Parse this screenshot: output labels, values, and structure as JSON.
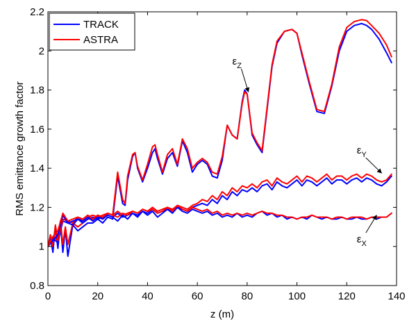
{
  "chart_data": {
    "type": "line",
    "title": "",
    "xlabel": "z (m)",
    "ylabel": "RMS emittance growth factor",
    "xlim": [
      0,
      140
    ],
    "ylim": [
      0.8,
      2.2
    ],
    "xticks": [
      0,
      20,
      40,
      60,
      80,
      100,
      120,
      140
    ],
    "yticks": [
      0.8,
      1,
      1.2,
      1.4,
      1.6,
      1.8,
      2,
      2.2
    ],
    "xtick_labels": [
      "0",
      "20",
      "40",
      "60",
      "80",
      "100",
      "120",
      "140"
    ],
    "ytick_labels": [
      "0.8",
      "1",
      "1.2",
      "1.4",
      "1.6",
      "1.8",
      "2",
      "2.2"
    ],
    "grid": false,
    "legend": {
      "position": "top-left",
      "entries": [
        {
          "label": "TRACK",
          "color": "#0000ff"
        },
        {
          "label": "ASTRA",
          "color": "#ff0000"
        }
      ]
    },
    "series": [
      {
        "name": "TRACK",
        "component": "z",
        "color": "#0000ff",
        "x": [
          0,
          1,
          2,
          3,
          4,
          5,
          6,
          7,
          8,
          10,
          12,
          14,
          16,
          18,
          20,
          22,
          24,
          26,
          28,
          30,
          31,
          32,
          34,
          35,
          36,
          38,
          40,
          42,
          43,
          44,
          46,
          48,
          50,
          52,
          54,
          56,
          58,
          60,
          62,
          64,
          66,
          68,
          70,
          72,
          74,
          76,
          78,
          79,
          80,
          82,
          84,
          86,
          88,
          90,
          92,
          95,
          98,
          100,
          102,
          105,
          108,
          111,
          114,
          117,
          120,
          123,
          126,
          128,
          130,
          133,
          136,
          138
        ],
        "y": [
          1.0,
          1.05,
          0.97,
          1.1,
          0.99,
          1.12,
          0.97,
          1.09,
          0.95,
          1.11,
          1.08,
          1.1,
          1.12,
          1.12,
          1.14,
          1.12,
          1.15,
          1.14,
          1.36,
          1.22,
          1.21,
          1.34,
          1.46,
          1.48,
          1.4,
          1.33,
          1.4,
          1.48,
          1.5,
          1.45,
          1.37,
          1.45,
          1.48,
          1.41,
          1.54,
          1.48,
          1.38,
          1.42,
          1.44,
          1.42,
          1.36,
          1.35,
          1.44,
          1.62,
          1.57,
          1.55,
          1.74,
          1.8,
          1.78,
          1.57,
          1.52,
          1.48,
          1.7,
          1.92,
          2.04,
          2.1,
          2.11,
          2.09,
          1.98,
          1.83,
          1.69,
          1.68,
          1.82,
          2.0,
          2.1,
          2.13,
          2.14,
          2.13,
          2.11,
          2.06,
          1.99,
          1.94
        ]
      },
      {
        "name": "ASTRA",
        "component": "z",
        "color": "#ff0000",
        "x": [
          0,
          1,
          2,
          3,
          4,
          5,
          6,
          7,
          8,
          10,
          12,
          14,
          16,
          18,
          20,
          22,
          24,
          26,
          28,
          30,
          31,
          32,
          34,
          35,
          36,
          38,
          40,
          42,
          43,
          44,
          46,
          48,
          50,
          52,
          54,
          56,
          58,
          60,
          62,
          64,
          66,
          68,
          70,
          72,
          74,
          76,
          78,
          79,
          80,
          82,
          84,
          86,
          88,
          90,
          92,
          95,
          98,
          100,
          102,
          105,
          108,
          111,
          114,
          117,
          120,
          123,
          126,
          128,
          130,
          133,
          136,
          138
        ],
        "y": [
          1.0,
          1.06,
          1.0,
          1.11,
          1.03,
          1.13,
          1.01,
          1.1,
          1.01,
          1.12,
          1.1,
          1.12,
          1.14,
          1.14,
          1.16,
          1.14,
          1.17,
          1.16,
          1.38,
          1.24,
          1.22,
          1.36,
          1.47,
          1.48,
          1.41,
          1.34,
          1.42,
          1.51,
          1.52,
          1.47,
          1.38,
          1.47,
          1.5,
          1.42,
          1.55,
          1.5,
          1.4,
          1.43,
          1.45,
          1.43,
          1.38,
          1.37,
          1.46,
          1.62,
          1.57,
          1.55,
          1.73,
          1.79,
          1.78,
          1.58,
          1.53,
          1.49,
          1.71,
          1.93,
          2.05,
          2.1,
          2.11,
          2.09,
          1.99,
          1.84,
          1.7,
          1.69,
          1.83,
          2.02,
          2.12,
          2.15,
          2.16,
          2.155,
          2.13,
          2.09,
          2.03,
          1.97
        ]
      },
      {
        "name": "TRACK",
        "component": "y",
        "color": "#0000ff",
        "x": [
          0,
          2,
          4,
          6,
          8,
          10,
          12,
          14,
          16,
          18,
          20,
          22,
          24,
          26,
          28,
          30,
          32,
          34,
          36,
          38,
          40,
          42,
          44,
          46,
          48,
          50,
          52,
          54,
          56,
          58,
          60,
          62,
          64,
          66,
          68,
          70,
          72,
          74,
          76,
          78,
          80,
          82,
          84,
          86,
          88,
          90,
          92,
          94,
          96,
          98,
          100,
          102,
          104,
          106,
          108,
          110,
          112,
          114,
          116,
          118,
          120,
          122,
          124,
          126,
          128,
          130,
          132,
          134,
          136,
          138
        ],
        "y": [
          1.0,
          1.04,
          1.02,
          1.13,
          1.12,
          1.11,
          1.14,
          1.12,
          1.14,
          1.15,
          1.14,
          1.15,
          1.16,
          1.15,
          1.17,
          1.15,
          1.16,
          1.17,
          1.16,
          1.18,
          1.17,
          1.19,
          1.17,
          1.18,
          1.19,
          1.18,
          1.2,
          1.19,
          1.18,
          1.2,
          1.21,
          1.22,
          1.21,
          1.24,
          1.22,
          1.26,
          1.24,
          1.28,
          1.26,
          1.29,
          1.28,
          1.3,
          1.28,
          1.31,
          1.32,
          1.29,
          1.33,
          1.31,
          1.3,
          1.32,
          1.34,
          1.31,
          1.34,
          1.33,
          1.31,
          1.33,
          1.35,
          1.32,
          1.34,
          1.34,
          1.32,
          1.34,
          1.35,
          1.33,
          1.35,
          1.34,
          1.32,
          1.31,
          1.33,
          1.36
        ]
      },
      {
        "name": "ASTRA",
        "component": "y",
        "color": "#ff0000",
        "x": [
          0,
          2,
          4,
          6,
          8,
          10,
          12,
          14,
          16,
          18,
          20,
          22,
          24,
          26,
          28,
          30,
          32,
          34,
          36,
          38,
          40,
          42,
          44,
          46,
          48,
          50,
          52,
          54,
          56,
          58,
          60,
          62,
          64,
          66,
          68,
          70,
          72,
          74,
          76,
          78,
          80,
          82,
          84,
          86,
          88,
          90,
          92,
          94,
          96,
          98,
          100,
          102,
          104,
          106,
          108,
          110,
          112,
          114,
          116,
          118,
          120,
          122,
          124,
          126,
          128,
          130,
          132,
          134,
          136,
          138
        ],
        "y": [
          1.0,
          1.05,
          1.03,
          1.14,
          1.13,
          1.12,
          1.15,
          1.13,
          1.15,
          1.16,
          1.15,
          1.16,
          1.17,
          1.16,
          1.18,
          1.16,
          1.17,
          1.18,
          1.17,
          1.19,
          1.18,
          1.2,
          1.18,
          1.19,
          1.2,
          1.19,
          1.21,
          1.2,
          1.19,
          1.21,
          1.22,
          1.24,
          1.23,
          1.26,
          1.24,
          1.28,
          1.26,
          1.3,
          1.28,
          1.31,
          1.3,
          1.32,
          1.3,
          1.33,
          1.34,
          1.31,
          1.35,
          1.33,
          1.32,
          1.34,
          1.36,
          1.33,
          1.36,
          1.35,
          1.33,
          1.35,
          1.37,
          1.34,
          1.36,
          1.36,
          1.34,
          1.36,
          1.37,
          1.35,
          1.37,
          1.36,
          1.34,
          1.33,
          1.34,
          1.37
        ]
      },
      {
        "name": "TRACK",
        "component": "x",
        "color": "#0000ff",
        "x": [
          0,
          2,
          4,
          6,
          8,
          10,
          12,
          14,
          16,
          18,
          20,
          22,
          24,
          26,
          28,
          30,
          32,
          34,
          36,
          38,
          40,
          42,
          44,
          46,
          48,
          50,
          52,
          54,
          56,
          58,
          60,
          62,
          64,
          66,
          68,
          70,
          72,
          74,
          76,
          78,
          80,
          82,
          84,
          86,
          88,
          90,
          92,
          94,
          96,
          98,
          100,
          102,
          104,
          106,
          108,
          110,
          112,
          114,
          116,
          118,
          120,
          122,
          124,
          126,
          128,
          130,
          132,
          134,
          136,
          138
        ],
        "y": [
          1.0,
          1.03,
          1.06,
          1.16,
          1.12,
          1.13,
          1.14,
          1.13,
          1.15,
          1.13,
          1.15,
          1.14,
          1.16,
          1.15,
          1.13,
          1.16,
          1.14,
          1.17,
          1.15,
          1.18,
          1.16,
          1.18,
          1.15,
          1.17,
          1.19,
          1.17,
          1.2,
          1.18,
          1.17,
          1.19,
          1.18,
          1.17,
          1.18,
          1.16,
          1.17,
          1.15,
          1.16,
          1.15,
          1.17,
          1.15,
          1.16,
          1.15,
          1.17,
          1.18,
          1.16,
          1.17,
          1.15,
          1.16,
          1.14,
          1.15,
          1.14,
          1.15,
          1.14,
          1.16,
          1.15,
          1.14,
          1.15,
          1.14,
          1.14,
          1.15,
          1.14,
          1.14,
          1.15,
          1.14,
          1.14,
          1.15,
          1.14,
          1.15,
          1.15,
          1.17
        ]
      },
      {
        "name": "ASTRA",
        "component": "x",
        "color": "#ff0000",
        "x": [
          0,
          2,
          4,
          6,
          8,
          10,
          12,
          14,
          16,
          18,
          20,
          22,
          24,
          26,
          28,
          30,
          32,
          34,
          36,
          38,
          40,
          42,
          44,
          46,
          48,
          50,
          52,
          54,
          56,
          58,
          60,
          62,
          64,
          66,
          68,
          70,
          72,
          74,
          76,
          78,
          80,
          82,
          84,
          86,
          88,
          90,
          92,
          94,
          96,
          98,
          100,
          102,
          104,
          106,
          108,
          110,
          112,
          114,
          116,
          118,
          120,
          122,
          124,
          126,
          128,
          130,
          132,
          134,
          136,
          138
        ],
        "y": [
          1.0,
          1.05,
          1.08,
          1.17,
          1.13,
          1.14,
          1.15,
          1.14,
          1.16,
          1.14,
          1.16,
          1.15,
          1.17,
          1.16,
          1.15,
          1.17,
          1.16,
          1.18,
          1.17,
          1.19,
          1.18,
          1.19,
          1.17,
          1.18,
          1.2,
          1.18,
          1.21,
          1.19,
          1.18,
          1.2,
          1.19,
          1.18,
          1.19,
          1.17,
          1.18,
          1.16,
          1.17,
          1.16,
          1.17,
          1.16,
          1.17,
          1.16,
          1.17,
          1.18,
          1.17,
          1.17,
          1.16,
          1.16,
          1.15,
          1.15,
          1.14,
          1.15,
          1.15,
          1.16,
          1.15,
          1.15,
          1.15,
          1.14,
          1.15,
          1.15,
          1.14,
          1.15,
          1.15,
          1.15,
          1.14,
          1.15,
          1.15,
          1.15,
          1.15,
          1.17
        ]
      }
    ],
    "annotations": [
      {
        "label": "ε",
        "sub": "Z",
        "text_at": [
          76,
          1.93
        ],
        "arrow_to": [
          80.5,
          1.79
        ]
      },
      {
        "label": "ε",
        "sub": "Y",
        "text_at": [
          126,
          1.475
        ],
        "arrow_to": [
          134,
          1.375
        ]
      },
      {
        "label": "ε",
        "sub": "X",
        "text_at": [
          126,
          1.02
        ],
        "arrow_to": [
          132,
          1.16
        ]
      }
    ]
  }
}
